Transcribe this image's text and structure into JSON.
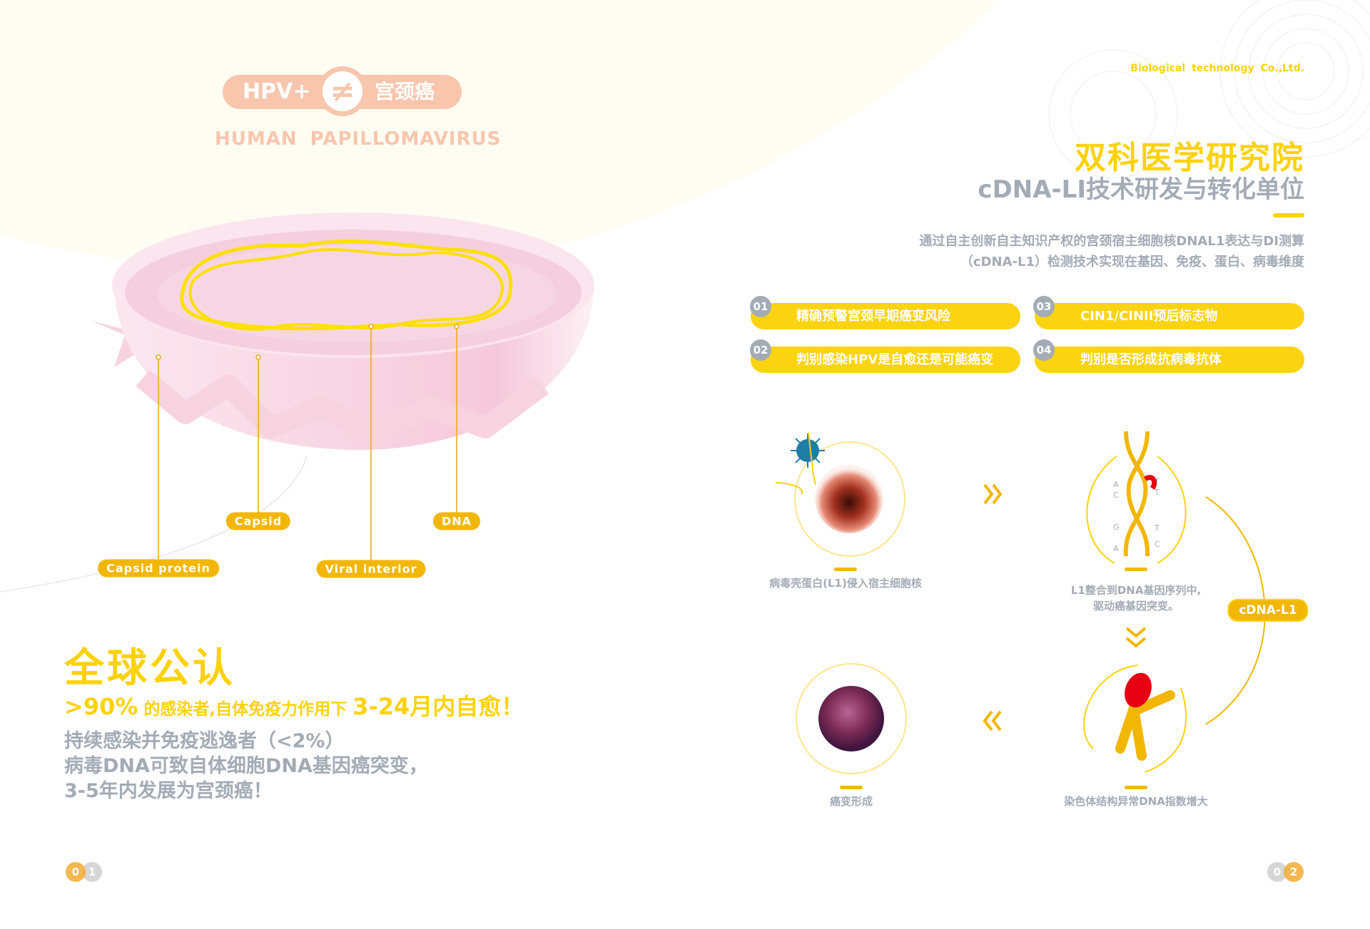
{
  "left_page": {
    "badge": {
      "left": "HPV+",
      "symbol": "≠",
      "right": "宫颈癌"
    },
    "subtitle": "HUMAN  PAPILLOMAVIRUS",
    "labels": {
      "capsid_protein": "Capsid  protein",
      "capsid": "Capsid",
      "viral_interior": "Viral  interior",
      "dna": "DNA"
    },
    "title": "全球公认",
    "stat": {
      "part1": ">90%",
      "part2": " 的感染者,自体免疫力作用下 ",
      "part3": "3-24月内自愈！"
    },
    "notes": [
      "持续感染并免疫逃逸者（<2%）",
      "病毒DNA可致自体细胞DNA基因癌突变，",
      "3-5年内发展为宫颈癌！"
    ],
    "page_number": [
      "0",
      "1"
    ]
  },
  "right_page": {
    "company": "Biological  technology Co.,Ltd.",
    "institute": "双科医学研究院",
    "subtitle": "cDNA-LI技术研发与转化单位",
    "description": [
      "通过自主创新自主知识产权的宫颈宿主细胞核DNAL1表达与DI测算",
      "（cDNA-L1）检测技术实现在基因、免疫、蛋白、病毒维度"
    ],
    "features": [
      {
        "num": "01",
        "text": "精确预警宫颈早期癌变风险"
      },
      {
        "num": "02",
        "text": "判别感染HPV是自愈还是可能癌变"
      },
      {
        "num": "03",
        "text": "CIN1/CINII预后标志物"
      },
      {
        "num": "04",
        "text": "判别是否形成抗病毒抗体"
      }
    ],
    "steps": {
      "invade": "病毒壳蛋白(L1)侵入宿主细胞核",
      "integrate": [
        "L1整合到DNA基因序列中,",
        "驱动癌基因突变。"
      ],
      "chromosome": "染色体结构异常DNA指数增大",
      "cancer": "癌变形成"
    },
    "dna_bases": {
      "left": [
        "A",
        "C",
        "G",
        "A"
      ],
      "right": [
        "T",
        "T",
        "T",
        "C"
      ]
    },
    "cycle_badge": "cDNA-L1",
    "page_number": [
      "0",
      "2"
    ]
  },
  "colors": {
    "yellow": "#fdd20a",
    "amber": "#f2b705",
    "peach": "#f8c6ad",
    "gray": "#a3abb5",
    "pink": "#f7d3e0",
    "red": "#e60012"
  }
}
